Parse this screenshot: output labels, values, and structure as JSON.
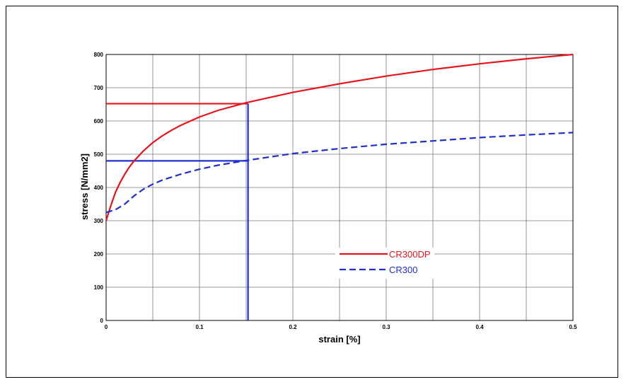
{
  "chart_data": {
    "type": "line",
    "xlabel": "strain [%]",
    "ylabel": "stress [N/mm2]",
    "xlim": [
      0,
      0.5
    ],
    "ylim": [
      0,
      800
    ],
    "x_ticks": [
      0,
      0.05,
      0.1,
      0.15,
      0.2,
      0.25,
      0.3,
      0.35,
      0.4,
      0.45,
      0.5
    ],
    "x_tick_labels": [
      "0",
      "",
      "0.1",
      "",
      "0.2",
      "",
      "0.3",
      "",
      "0.4",
      "",
      "0.5"
    ],
    "y_ticks": [
      0,
      100,
      200,
      300,
      400,
      500,
      600,
      700,
      800
    ],
    "y_tick_labels": [
      "0",
      "100",
      "200",
      "300",
      "400",
      "500",
      "600",
      "700",
      "800"
    ],
    "grid": true,
    "legend_position": "center",
    "series": [
      {
        "name": "CR300DP",
        "color": "#e8141c",
        "style": "solid",
        "x": [
          0,
          0.005,
          0.01,
          0.015,
          0.02,
          0.025,
          0.03,
          0.04,
          0.05,
          0.06,
          0.07,
          0.08,
          0.1,
          0.12,
          0.15,
          0.2,
          0.25,
          0.3,
          0.35,
          0.4,
          0.45,
          0.5
        ],
        "y": [
          300,
          345,
          385,
          415,
          440,
          462,
          480,
          510,
          535,
          555,
          572,
          587,
          612,
          632,
          655,
          686,
          712,
          735,
          755,
          772,
          787,
          800
        ]
      },
      {
        "name": "CR300",
        "color": "#2030d0",
        "style": "dashed",
        "x": [
          0,
          0.01,
          0.02,
          0.03,
          0.04,
          0.05,
          0.06,
          0.08,
          0.1,
          0.12,
          0.15,
          0.2,
          0.25,
          0.3,
          0.35,
          0.4,
          0.45,
          0.5
        ],
        "y": [
          325,
          333,
          350,
          375,
          395,
          410,
          422,
          440,
          455,
          467,
          481,
          502,
          517,
          530,
          540,
          550,
          558,
          565
        ]
      }
    ],
    "annotations": [
      {
        "x": 0.152,
        "y": 652,
        "color": "#e8141c"
      },
      {
        "x": 0.152,
        "y": 480,
        "color": "#2030d0"
      }
    ]
  }
}
